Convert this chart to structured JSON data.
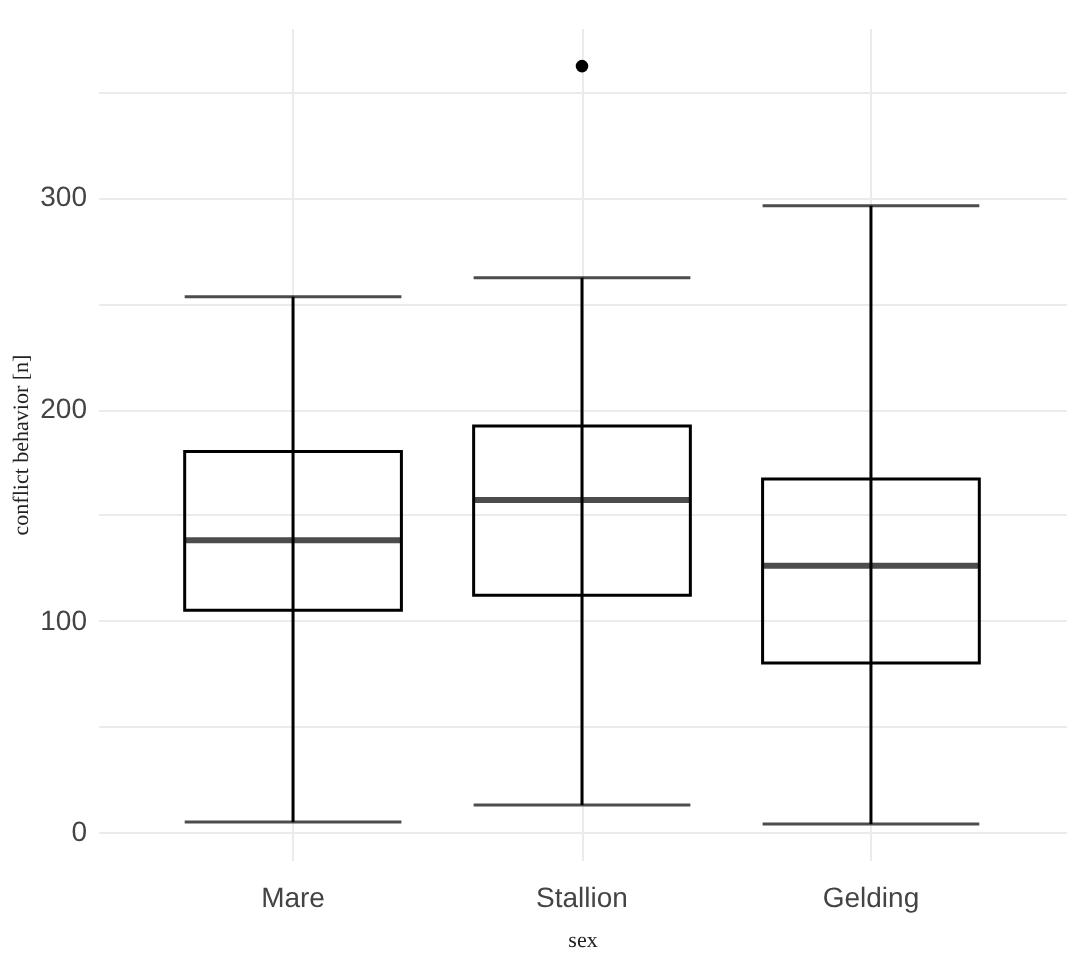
{
  "chart_data": {
    "type": "box",
    "xlabel": "sex",
    "ylabel": "conflict behavior [n]",
    "categories": [
      "Mare",
      "Stallion",
      "Gelding"
    ],
    "boxes": [
      {
        "low": 5,
        "q1": 105,
        "median": 138,
        "q3": 180,
        "high": 253
      },
      {
        "low": 13,
        "q1": 112,
        "median": 157,
        "q3": 192,
        "high": 262,
        "outliers": [
          362
        ]
      },
      {
        "low": 4,
        "q1": 80,
        "median": 126,
        "q3": 167,
        "high": 296
      }
    ],
    "ylim": [
      -13,
      380
    ],
    "yticks": [
      0,
      {
        "value": 50,
        "label": null
      },
      100,
      {
        "value": 150,
        "label": null
      },
      200,
      {
        "value": 250,
        "label": null
      },
      300,
      {
        "value": 350,
        "label": null
      }
    ],
    "grid": true,
    "color": "#000000"
  }
}
